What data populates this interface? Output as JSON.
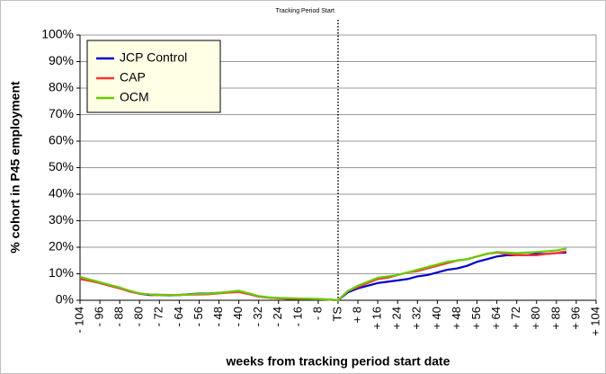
{
  "chart_data": {
    "type": "line",
    "annotation": {
      "text": "Tracking Period Start",
      "x": 0
    },
    "xlabel": "weeks from tracking period start date",
    "ylabel": "% cohort in P45 employment",
    "x": [
      -104,
      -100,
      -96,
      -92,
      -88,
      -84,
      -80,
      -76,
      -72,
      -68,
      -64,
      -60,
      -56,
      -52,
      -48,
      -44,
      -40,
      -36,
      -32,
      -28,
      -24,
      -20,
      -16,
      -12,
      -8,
      -4,
      0,
      4,
      8,
      12,
      16,
      20,
      24,
      28,
      32,
      36,
      40,
      44,
      48,
      52,
      56,
      60,
      64,
      68,
      72,
      76,
      80,
      84,
      88,
      92
    ],
    "series": [
      {
        "name": "JCP Control",
        "color": "#0000cc",
        "values": [
          8.5,
          7.5,
          6.5,
          5.5,
          4.5,
          3.5,
          2.5,
          2,
          2,
          1.8,
          2,
          2.3,
          2.5,
          2.6,
          2.8,
          3,
          3.3,
          2.5,
          1.5,
          1,
          0.8,
          0.6,
          0.5,
          0.5,
          0.4,
          0.3,
          0,
          3,
          4.5,
          5.5,
          6.5,
          7,
          7.5,
          8,
          9,
          9.5,
          10.5,
          11.5,
          12,
          13,
          14.5,
          15.5,
          16.5,
          17,
          17,
          17,
          17.5,
          17.5,
          17.8,
          18
        ]
      },
      {
        "name": "CAP",
        "color": "#ff3333",
        "values": [
          8,
          7.3,
          6.5,
          5.5,
          4.5,
          3.3,
          2.5,
          2.2,
          2.1,
          2,
          2,
          2.1,
          2.2,
          2.3,
          2.6,
          2.9,
          3.1,
          2.3,
          1.4,
          1,
          0.8,
          0.6,
          0.5,
          0.5,
          0.4,
          0.3,
          0,
          3.5,
          5,
          6.5,
          8,
          8.5,
          9.5,
          10.5,
          11,
          12,
          13,
          14,
          15,
          15.5,
          16.5,
          17.5,
          18,
          17.5,
          17,
          17,
          17,
          17.5,
          17.8,
          18.5
        ]
      },
      {
        "name": "OCM",
        "color": "#66cc00",
        "values": [
          8.8,
          7.8,
          6.8,
          5.8,
          4.8,
          3.6,
          2.6,
          2.2,
          2,
          1.9,
          2,
          2.2,
          2.4,
          2.5,
          2.8,
          3.2,
          3.6,
          2.6,
          1.6,
          1.1,
          0.9,
          0.8,
          0.7,
          0.6,
          0.5,
          0.3,
          0,
          3.5,
          5.5,
          7,
          8.5,
          9,
          9.5,
          10.5,
          11.5,
          12.5,
          13.5,
          14.5,
          15,
          15.5,
          16.5,
          17.5,
          18.2,
          18,
          17.8,
          18,
          18.2,
          18.5,
          18.8,
          19.5
        ]
      }
    ],
    "xlim": [
      -104,
      104
    ],
    "xticks": [
      {
        "value": -104,
        "label": "- 104"
      },
      {
        "value": -96,
        "label": "- 96"
      },
      {
        "value": -88,
        "label": "- 88"
      },
      {
        "value": -80,
        "label": "- 80"
      },
      {
        "value": -72,
        "label": "- 72"
      },
      {
        "value": -64,
        "label": "- 64"
      },
      {
        "value": -56,
        "label": "- 56"
      },
      {
        "value": -48,
        "label": "- 48"
      },
      {
        "value": -40,
        "label": "- 40"
      },
      {
        "value": -32,
        "label": "- 32"
      },
      {
        "value": -24,
        "label": "- 24"
      },
      {
        "value": -16,
        "label": "- 16"
      },
      {
        "value": -8,
        "label": "- 8"
      },
      {
        "value": 0,
        "label": "TS"
      },
      {
        "value": 8,
        "label": "+ 8"
      },
      {
        "value": 16,
        "label": "+ 16"
      },
      {
        "value": 24,
        "label": "+ 24"
      },
      {
        "value": 32,
        "label": "+ 32"
      },
      {
        "value": 40,
        "label": "+ 40"
      },
      {
        "value": 48,
        "label": "+ 48"
      },
      {
        "value": 56,
        "label": "+ 56"
      },
      {
        "value": 64,
        "label": "+ 64"
      },
      {
        "value": 72,
        "label": "+ 72"
      },
      {
        "value": 80,
        "label": "+ 80"
      },
      {
        "value": 88,
        "label": "+ 88"
      },
      {
        "value": 96,
        "label": "+ 96"
      },
      {
        "value": 104,
        "label": "+ 104"
      }
    ],
    "ylim": [
      0,
      100
    ],
    "yticks": [
      {
        "value": 0,
        "label": "0%"
      },
      {
        "value": 10,
        "label": "10%"
      },
      {
        "value": 20,
        "label": "20%"
      },
      {
        "value": 30,
        "label": "30%"
      },
      {
        "value": 40,
        "label": "40%"
      },
      {
        "value": 50,
        "label": "50%"
      },
      {
        "value": 60,
        "label": "60%"
      },
      {
        "value": 70,
        "label": "70%"
      },
      {
        "value": 80,
        "label": "80%"
      },
      {
        "value": 90,
        "label": "90%"
      },
      {
        "value": 100,
        "label": "100%"
      }
    ],
    "grid": true,
    "legend": "upper left"
  }
}
